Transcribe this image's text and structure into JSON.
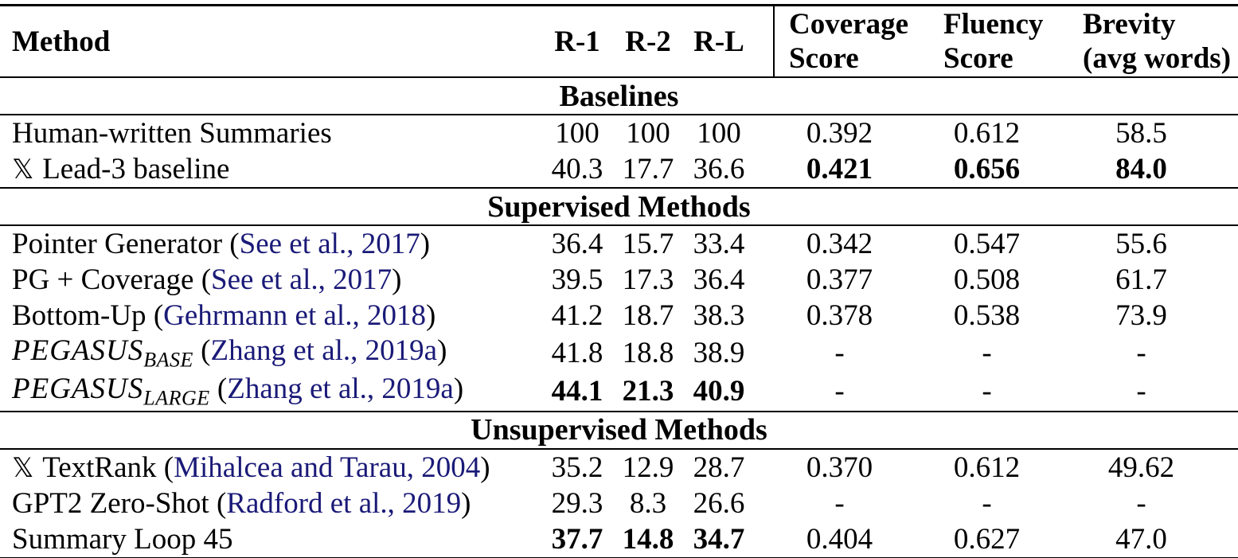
{
  "colors": {
    "citation": "#1a1a78",
    "text": "#000000",
    "background": "#ffffff"
  },
  "header": {
    "method": "Method",
    "r1": "R-1",
    "r2": "R-2",
    "rl": "R-L",
    "coverage": [
      "Coverage",
      "Score"
    ],
    "fluency": [
      "Fluency",
      "Score"
    ],
    "brevity": [
      "Brevity",
      "(avg words)"
    ]
  },
  "marker_glyph": "𝕏",
  "sections": [
    {
      "title": "Baselines",
      "rows": [
        {
          "name": "Human-written Summaries",
          "cells": [
            {
              "v": "100",
              "b": false
            },
            {
              "v": "100",
              "b": false
            },
            {
              "v": "100",
              "b": false
            },
            {
              "v": "0.392",
              "b": false
            },
            {
              "v": "0.612",
              "b": false
            },
            {
              "v": "58.5",
              "b": false
            }
          ]
        },
        {
          "marker": "𝕏",
          "name": "Lead-3 baseline",
          "cells": [
            {
              "v": "40.3",
              "b": false
            },
            {
              "v": "17.7",
              "b": false
            },
            {
              "v": "36.6",
              "b": false
            },
            {
              "v": "0.421",
              "b": true
            },
            {
              "v": "0.656",
              "b": true
            },
            {
              "v": "84.0",
              "b": true
            }
          ]
        }
      ]
    },
    {
      "title": "Supervised Methods",
      "rows": [
        {
          "name": "Pointer Generator",
          "cite": "See et al., 2017",
          "cells": [
            {
              "v": "36.4",
              "b": false
            },
            {
              "v": "15.7",
              "b": false
            },
            {
              "v": "33.4",
              "b": false
            },
            {
              "v": "0.342",
              "b": false
            },
            {
              "v": "0.547",
              "b": false
            },
            {
              "v": "55.6",
              "b": false
            }
          ]
        },
        {
          "name": "PG + Coverage",
          "cite": "See et al., 2017",
          "cells": [
            {
              "v": "39.5",
              "b": false
            },
            {
              "v": "17.3",
              "b": false
            },
            {
              "v": "36.4",
              "b": false
            },
            {
              "v": "0.377",
              "b": false
            },
            {
              "v": "0.508",
              "b": false
            },
            {
              "v": "61.7",
              "b": false
            }
          ]
        },
        {
          "name": "Bottom-Up",
          "cite": "Gehrmann et al., 2018",
          "cells": [
            {
              "v": "41.2",
              "b": false
            },
            {
              "v": "18.7",
              "b": false
            },
            {
              "v": "38.3",
              "b": false
            },
            {
              "v": "0.378",
              "b": false
            },
            {
              "v": "0.538",
              "b": false
            },
            {
              "v": "73.9",
              "b": false
            }
          ]
        },
        {
          "math": "PEGASUS",
          "sub": "BASE",
          "cite": "Zhang et al., 2019a",
          "cells": [
            {
              "v": "41.8",
              "b": false
            },
            {
              "v": "18.8",
              "b": false
            },
            {
              "v": "38.9",
              "b": false
            },
            {
              "v": "-",
              "b": false
            },
            {
              "v": "-",
              "b": false
            },
            {
              "v": "-",
              "b": false
            }
          ]
        },
        {
          "math": "PEGASUS",
          "sub": "LARGE",
          "cite": "Zhang et al., 2019a",
          "cells": [
            {
              "v": "44.1",
              "b": true
            },
            {
              "v": "21.3",
              "b": true
            },
            {
              "v": "40.9",
              "b": true
            },
            {
              "v": "-",
              "b": false
            },
            {
              "v": "-",
              "b": false
            },
            {
              "v": "-",
              "b": false
            }
          ]
        }
      ]
    },
    {
      "title": "Unsupervised Methods",
      "rows": [
        {
          "marker": "𝕏",
          "name": "TextRank",
          "cite": "Mihalcea and Tarau, 2004",
          "cells": [
            {
              "v": "35.2",
              "b": false
            },
            {
              "v": "12.9",
              "b": false
            },
            {
              "v": "28.7",
              "b": false
            },
            {
              "v": "0.370",
              "b": false
            },
            {
              "v": "0.612",
              "b": false
            },
            {
              "v": "49.62",
              "b": false
            }
          ]
        },
        {
          "name": "GPT2 Zero-Shot",
          "cite": "Radford et al., 2019",
          "cells": [
            {
              "v": "29.3",
              "b": false
            },
            {
              "v": "8.3",
              "b": false
            },
            {
              "v": "26.6",
              "b": false
            },
            {
              "v": "-",
              "b": false
            },
            {
              "v": "-",
              "b": false
            },
            {
              "v": "-",
              "b": false
            }
          ]
        },
        {
          "name": "Summary Loop 45",
          "cells": [
            {
              "v": "37.7",
              "b": true
            },
            {
              "v": "14.8",
              "b": true
            },
            {
              "v": "34.7",
              "b": true
            },
            {
              "v": "0.404",
              "b": false
            },
            {
              "v": "0.627",
              "b": false
            },
            {
              "v": "47.0",
              "b": false
            }
          ]
        }
      ]
    }
  ]
}
